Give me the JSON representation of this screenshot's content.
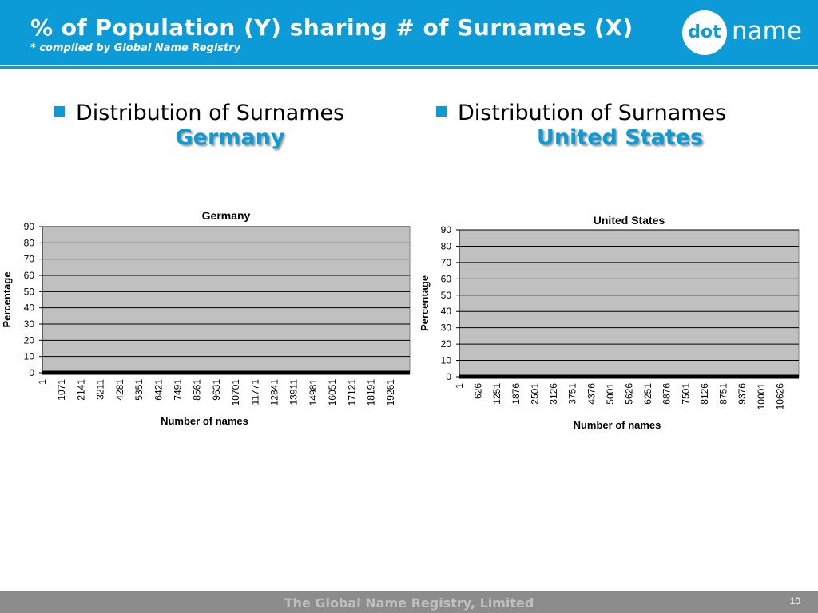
{
  "header": {
    "title": "% of Population (Y) sharing # of Surnames (X)",
    "subtitle": "* compiled by Global Name Registry",
    "logo_dot": "dot",
    "logo_name": "name",
    "brand_color": "#0d9bd7"
  },
  "headings": [
    {
      "line1": "Distribution of Surnames",
      "line2": "Germany"
    },
    {
      "line1": "Distribution of Surnames",
      "line2": "United States"
    }
  ],
  "footer": {
    "text": "The Global Name Registry, Limited",
    "page_number": "10"
  },
  "chart_data": [
    {
      "type": "area",
      "title": "Germany",
      "xlabel": "Number of names",
      "ylabel": "Percentage",
      "categories": [
        "1",
        "1071",
        "2141",
        "3211",
        "4281",
        "5351",
        "6421",
        "7491",
        "8561",
        "9631",
        "10701",
        "11771",
        "12841",
        "13911",
        "14981",
        "16051",
        "17121",
        "18191",
        "19261"
      ],
      "values": [
        0,
        0,
        0,
        0,
        0,
        0,
        0,
        0,
        0,
        0,
        0,
        0,
        0,
        0,
        0,
        0,
        0,
        0,
        0
      ],
      "ylim": [
        0,
        90
      ],
      "yticks": [
        0,
        10,
        20,
        30,
        40,
        50,
        60,
        70,
        80,
        90
      ],
      "grid": true,
      "plot_color": "#c0c0c0",
      "series_color": "#000000"
    },
    {
      "type": "area",
      "title": "United States",
      "xlabel": "Number of names",
      "ylabel": "Percentage",
      "categories": [
        "1",
        "626",
        "1251",
        "1876",
        "2501",
        "3126",
        "3751",
        "4376",
        "5001",
        "5626",
        "6251",
        "6876",
        "7501",
        "8126",
        "8751",
        "9376",
        "10001",
        "10626"
      ],
      "values": [
        0,
        0,
        0,
        0,
        0,
        0,
        0,
        0,
        0,
        0,
        0,
        0,
        0,
        0,
        0,
        0,
        0,
        0
      ],
      "ylim": [
        0,
        90
      ],
      "yticks": [
        0,
        10,
        20,
        30,
        40,
        50,
        60,
        70,
        80,
        90
      ],
      "grid": true,
      "plot_color": "#c0c0c0",
      "series_color": "#000000"
    }
  ]
}
